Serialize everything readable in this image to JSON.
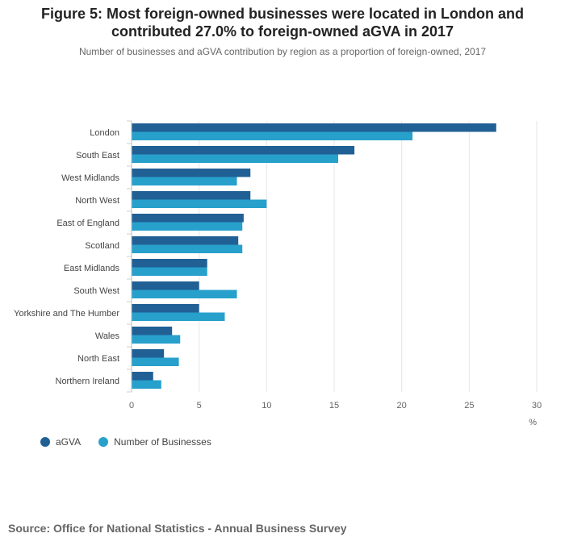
{
  "header": {
    "title": "Figure 5: Most foreign-owned businesses were located in London and contributed 27.0% to foreign-owned aGVA in 2017",
    "subtitle": "Number of businesses and aGVA contribution by region as a proportion of foreign-owned, 2017"
  },
  "legend": {
    "items": [
      {
        "label": "aGVA",
        "color": "#206095"
      },
      {
        "label": "Number of Businesses",
        "color": "#27a0cc"
      }
    ]
  },
  "footer": {
    "source": "Source: Office for National Statistics - Annual Business Survey"
  },
  "chart_data": {
    "type": "bar",
    "orientation": "horizontal",
    "title": "Figure 5: Most foreign-owned businesses were located in London and contributed 27.0% to foreign-owned aGVA in 2017",
    "subtitle": "Number of businesses and aGVA contribution by region as a proportion of foreign-owned, 2017",
    "categories": [
      "London",
      "South East",
      "West Midlands",
      "North West",
      "East of England",
      "Scotland",
      "East Midlands",
      "South West",
      "Yorkshire and The Humber",
      "Wales",
      "North East",
      "Northern Ireland"
    ],
    "series": [
      {
        "name": "aGVA",
        "color": "#206095",
        "values": [
          27.0,
          16.5,
          8.8,
          8.8,
          8.3,
          7.9,
          5.6,
          5.0,
          5.0,
          3.0,
          2.4,
          1.6
        ]
      },
      {
        "name": "Number of Businesses",
        "color": "#27a0cc",
        "values": [
          20.8,
          15.3,
          7.8,
          10.0,
          8.2,
          8.2,
          5.6,
          7.8,
          6.9,
          3.6,
          3.5,
          2.2
        ]
      }
    ],
    "xlim": [
      0,
      30
    ],
    "xticks": [
      0,
      5,
      10,
      15,
      20,
      25,
      30
    ],
    "xlabel": "%",
    "ylabel": "",
    "grid": true,
    "legend": "bottom-left"
  }
}
